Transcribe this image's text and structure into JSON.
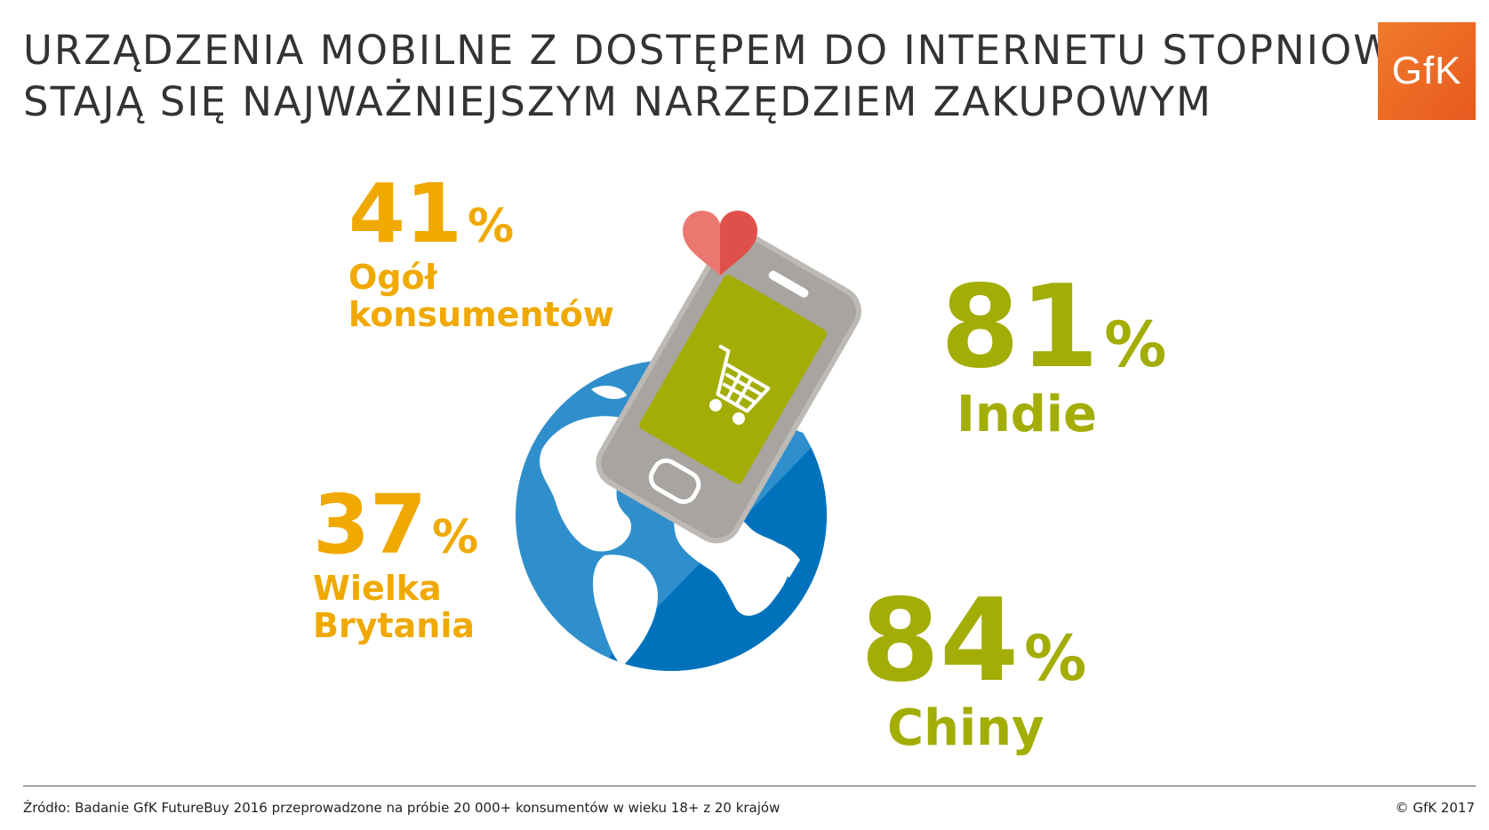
{
  "header": {
    "title_line1": "URZĄDZENIA MOBILNE Z DOSTĘPEM DO INTERNETU STOPNIOWO",
    "title_line2": "STAJĄ SIĘ NAJWAŻNIEJSZYM NARZĘDZIEM ZAKUPOWYM",
    "logo": "GfK"
  },
  "stats": [
    {
      "value": "41",
      "unit": "%",
      "label_lines": [
        "Ogół",
        "konsumentów"
      ],
      "color": "#f0a900"
    },
    {
      "value": "37",
      "unit": "%",
      "label_lines": [
        "Wielka",
        "Brytania"
      ],
      "color": "#f0a900"
    },
    {
      "value": "81",
      "unit": "%",
      "label_lines": [
        "Indie"
      ],
      "color": "#a3ad05"
    },
    {
      "value": "84",
      "unit": "%",
      "label_lines": [
        "Chiny"
      ],
      "color": "#a3ad05"
    }
  ],
  "illustration": {
    "icons": [
      "globe-icon",
      "smartphone-icon",
      "shopping-cart-icon",
      "heart-icon"
    ],
    "colors": {
      "globe_light": "#2f8fcc",
      "globe_dark": "#0072bc",
      "phone": "#a8a4a0",
      "screen": "#a3ad05",
      "heart": "#e0504a"
    }
  },
  "footer": {
    "source": "Źródło: Badanie GfK FutureBuy 2016 przeprowadzone na próbie 20 000+ konsumentów w wieku 18+ z 20 krajów",
    "copyright": "© GfK 2017"
  }
}
